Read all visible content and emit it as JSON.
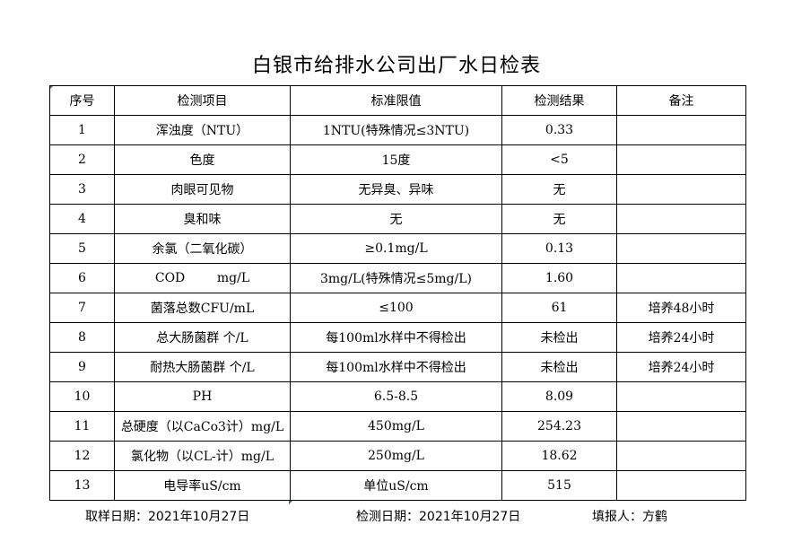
{
  "title": "白银市给排水公司出厂水日检表",
  "headers": [
    "序号",
    "检测项目",
    "标准限值",
    "检测结果",
    "备注"
  ],
  "rows": [
    [
      "1",
      "浑浊度（NTU）",
      "1NTU(特殊情况≤3NTU)",
      "0.33",
      ""
    ],
    [
      "2",
      "色度",
      "15度",
      "<5",
      ""
    ],
    [
      "3",
      "肉眼可见物",
      "无异臭、异味",
      "无",
      ""
    ],
    [
      "4",
      "臭和味",
      "无",
      "无",
      ""
    ],
    [
      "5",
      "余氯（二氧化碳）",
      "≥0.1mg/L",
      "0.13",
      ""
    ],
    [
      "6",
      "COD        mg/L",
      "3mg/L(特殊情况≤5mg/L)",
      "1.60",
      ""
    ],
    [
      "7",
      "菌落总数CFU/mL",
      "≤100",
      "61",
      "培养48小时"
    ],
    [
      "8",
      "总大肠菌群 个/L",
      "每100ml水样中不得检出",
      "未检出",
      "培养24小时"
    ],
    [
      "9",
      "耐热大肠菌群 个/L",
      "每100ml水样中不得检出",
      "未检出",
      "培养24小时"
    ],
    [
      "10",
      "PH",
      "6.5-8.5",
      "8.09",
      ""
    ],
    [
      "11",
      "总硬度（以CaCo3计）mg/L",
      "450mg/L",
      "254.23",
      ""
    ],
    [
      "12",
      "氯化物（以CL-计）mg/L",
      "250mg/L",
      "18.62",
      ""
    ],
    [
      "13",
      "电导率uS/cm",
      "单位uS/cm",
      "515",
      ""
    ]
  ],
  "footer": {
    "sampling_date": "取样日期：2021年10月27日",
    "test_date": "检测日期：2021年10月27日",
    "reporter": "填报人：方鹤"
  }
}
